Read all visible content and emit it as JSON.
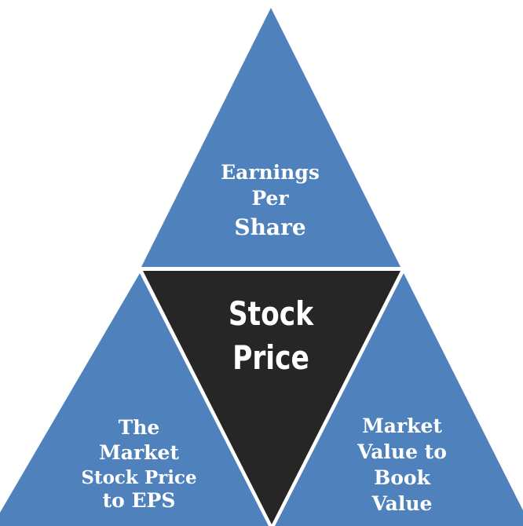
{
  "nodes": [
    {
      "lines": [
        "Earnings",
        "Per",
        "Share"
      ]
    },
    {
      "lines": [
        "Stock",
        "Price"
      ]
    },
    {
      "lines": [
        "The",
        "Market",
        "Stock Price",
        "to EPS"
      ]
    },
    {
      "lines": [
        "Market",
        "Value to",
        "Book",
        "Value"
      ]
    }
  ]
}
